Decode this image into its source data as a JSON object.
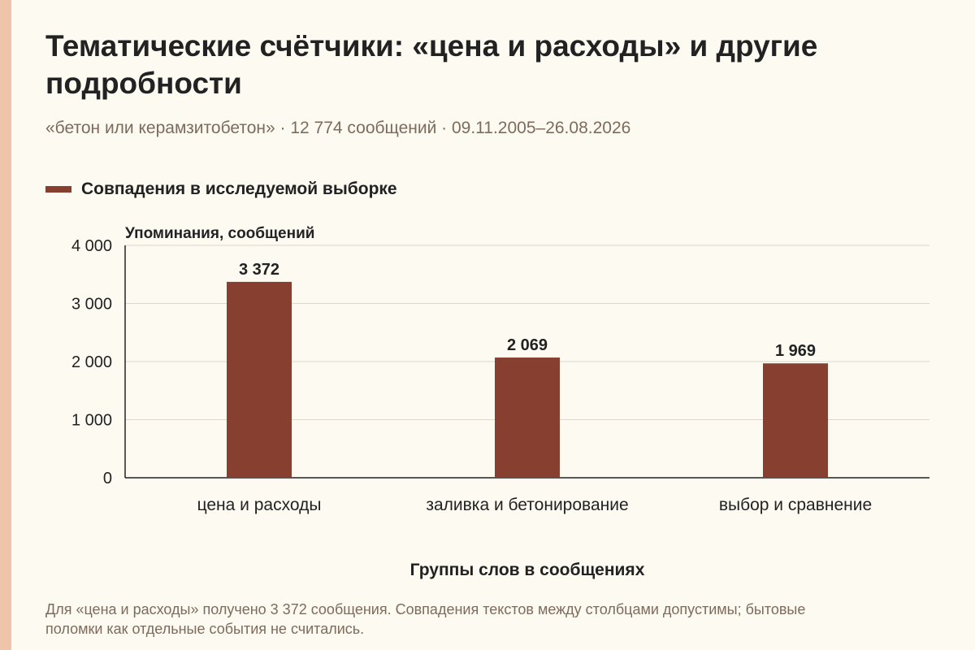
{
  "title": "Тематические счётчики: «цена и расходы» и другие подробности",
  "subtitle": "«бетон или керамзитобетон» · 12 774 сообщений · 09.11.2005–26.08.2026",
  "caption": "Для «цена и расходы» получено 3 372 сообщения. Совпадения текстов между столбцами допустимы; бытовые поломки как отдельные события не считались.",
  "colors": {
    "bar": "#873f30",
    "stripe": "#f0c4a8",
    "grid": "#dcd6cc",
    "axis": "#222222"
  },
  "chart_data": {
    "type": "bar",
    "categories": [
      "цена и расходы",
      "заливка и бетонирование",
      "выбор и сравнение"
    ],
    "series": [
      {
        "name": "Совпадения в исследуемой выборке",
        "values": [
          3372,
          2069,
          1969
        ]
      }
    ],
    "value_labels": [
      "3 372",
      "2 069",
      "1 969"
    ],
    "xlabel": "Группы слов в сообщениях",
    "ylabel": "Упоминания, сообщений",
    "ylim": [
      0,
      4000
    ],
    "yticks": [
      0,
      1000,
      2000,
      3000,
      4000
    ],
    "ytick_labels": [
      "0",
      "1 000",
      "2 000",
      "3 000",
      "4 000"
    ],
    "grid": true,
    "legend_position": "top-left"
  }
}
